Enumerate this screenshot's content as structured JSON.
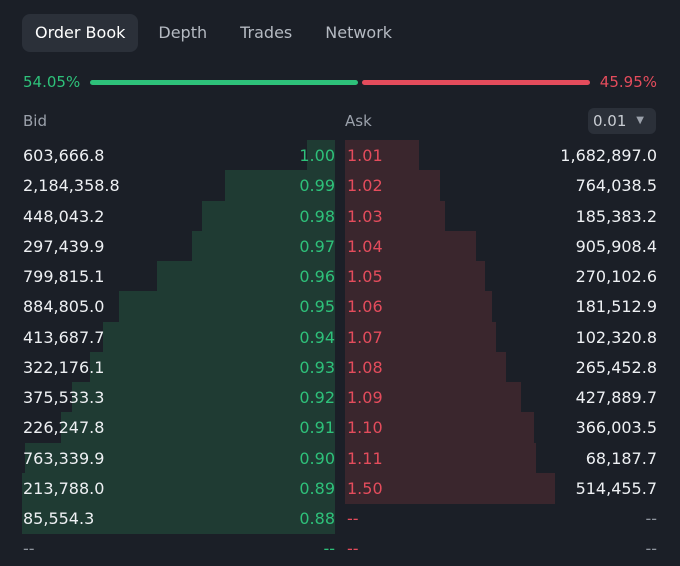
{
  "tabs": [
    {
      "label": "Order Book",
      "active": true
    },
    {
      "label": "Depth",
      "active": false
    },
    {
      "label": "Trades",
      "active": false
    },
    {
      "label": "Network",
      "active": false
    }
  ],
  "ratio": {
    "bid": "54.05%",
    "ask": "45.95%",
    "bid_fraction": 0.5405
  },
  "columns": {
    "bid": "Bid",
    "ask": "Ask"
  },
  "precision": {
    "value": "0.01"
  },
  "colors": {
    "bid": "#2ec17a",
    "ask": "#e44c5c",
    "bid_depth": "#1f3b33",
    "ask_depth": "#3a262d",
    "background": "#1b1f27"
  },
  "bids": [
    {
      "qty": "603,666.8",
      "price": "1.00"
    },
    {
      "qty": "2,184,358.8",
      "price": "0.99"
    },
    {
      "qty": "448,043.2",
      "price": "0.98"
    },
    {
      "qty": "297,439.9",
      "price": "0.97"
    },
    {
      "qty": "799,815.1",
      "price": "0.96"
    },
    {
      "qty": "884,805.0",
      "price": "0.95"
    },
    {
      "qty": "413,687.7",
      "price": "0.94"
    },
    {
      "qty": "322,176.1",
      "price": "0.93"
    },
    {
      "qty": "375,533.3",
      "price": "0.92"
    },
    {
      "qty": "226,247.8",
      "price": "0.91"
    },
    {
      "qty": "763,339.9",
      "price": "0.90"
    },
    {
      "qty": "213,788.0",
      "price": "0.89"
    },
    {
      "qty": "85,554.3",
      "price": "0.88"
    },
    {
      "qty": "--",
      "price": "--"
    }
  ],
  "asks": [
    {
      "price": "1.01",
      "qty": "1,682,897.0"
    },
    {
      "price": "1.02",
      "qty": "764,038.5"
    },
    {
      "price": "1.03",
      "qty": "185,383.2"
    },
    {
      "price": "1.04",
      "qty": "905,908.4"
    },
    {
      "price": "1.05",
      "qty": "270,102.6"
    },
    {
      "price": "1.06",
      "qty": "181,512.9"
    },
    {
      "price": "1.07",
      "qty": "102,320.8"
    },
    {
      "price": "1.08",
      "qty": "265,452.8"
    },
    {
      "price": "1.09",
      "qty": "427,889.7"
    },
    {
      "price": "1.10",
      "qty": "366,003.5"
    },
    {
      "price": "1.11",
      "qty": "68,187.7"
    },
    {
      "price": "1.50",
      "qty": "514,455.7"
    },
    {
      "price": "--",
      "qty": "--"
    },
    {
      "price": "--",
      "qty": "--"
    }
  ],
  "depth_fractions": {
    "bid": [
      0.088,
      0.352,
      0.426,
      0.458,
      0.569,
      0.691,
      0.74,
      0.783,
      0.84,
      0.874,
      0.991,
      1.0,
      1.0
    ],
    "ask": [
      0.349,
      0.444,
      0.468,
      0.616,
      0.659,
      0.69,
      0.71,
      0.754,
      0.825,
      0.885,
      0.897,
      0.985
    ]
  }
}
